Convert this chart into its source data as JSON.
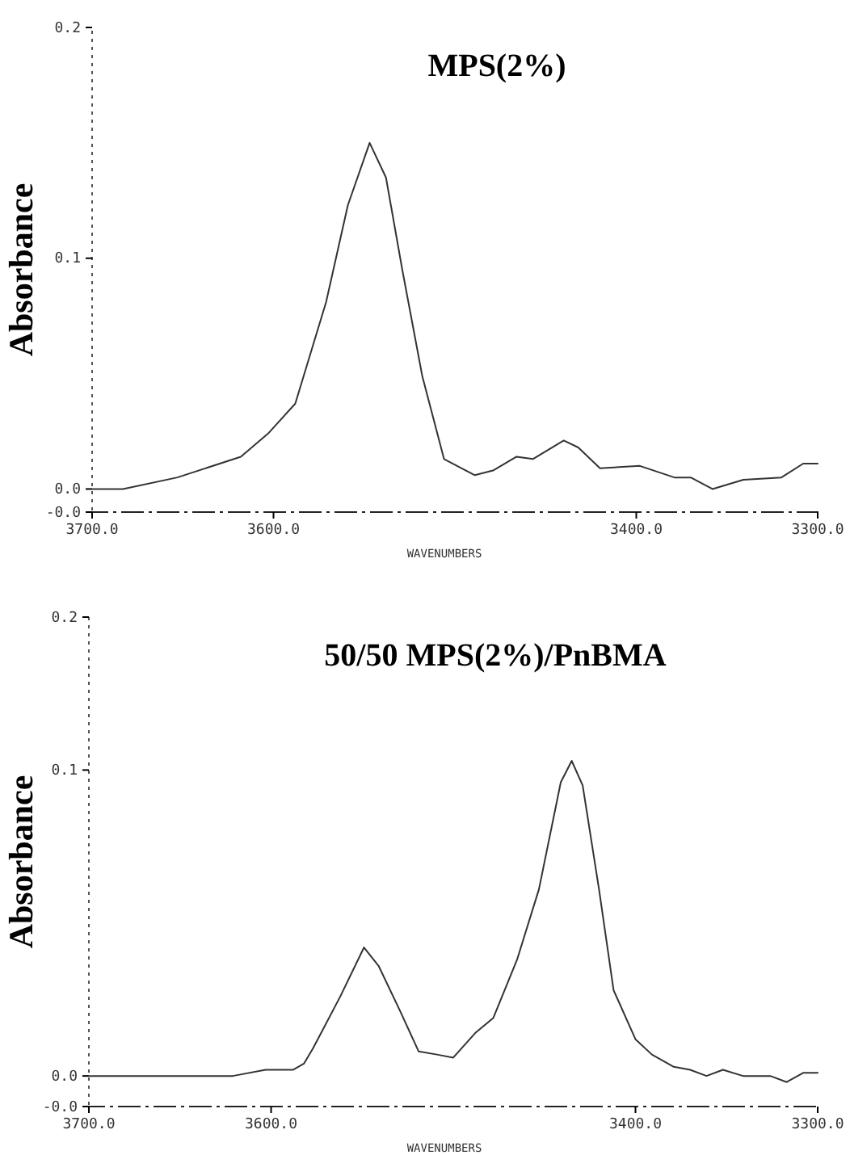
{
  "chart_data": [
    {
      "type": "line",
      "title": "MPS(2%)",
      "xlabel": "WAVENUMBERS",
      "ylabel": "Absorbance",
      "xlim": [
        3700,
        3300
      ],
      "xticks": [
        {
          "value": 3700,
          "label": "3700.0"
        },
        {
          "value": 3600,
          "label": "3600.0"
        },
        {
          "value": 3400,
          "label": "3400.0"
        },
        {
          "value": 3300,
          "label": "3300.0"
        }
      ],
      "ylim": [
        -0.01,
        0.2
      ],
      "yticks": [
        {
          "value": -0.01,
          "label": "-0.0"
        },
        {
          "value": 0,
          "label": "0.0"
        },
        {
          "value": 0.1,
          "label": "0.1"
        },
        {
          "value": 0.2,
          "label": "0.2"
        }
      ],
      "series": [
        {
          "color": "#333333",
          "x": [
            3700,
            3683,
            3653,
            3618,
            3603,
            3588,
            3571,
            3559,
            3547,
            3538,
            3529,
            3518,
            3506,
            3489,
            3479,
            3466,
            3457,
            3440,
            3432,
            3420,
            3398,
            3379,
            3370,
            3358,
            3341,
            3320,
            3308,
            3300
          ],
          "values": [
            0,
            0,
            0.005,
            0.014,
            0.024,
            0.037,
            0.081,
            0.123,
            0.15,
            0.135,
            0.095,
            0.049,
            0.013,
            0.006,
            0.008,
            0.014,
            0.013,
            0.021,
            0.018,
            0.009,
            0.01,
            0.005,
            0.005,
            0,
            0.004,
            0.005,
            0.011,
            0.011
          ]
        }
      ]
    },
    {
      "type": "line",
      "title": "50/50 MPS(2%)/PnBMA",
      "xlabel": "WAVENUMBERS",
      "ylabel": "Absorbance",
      "xlim": [
        3700,
        3300
      ],
      "xticks": [
        {
          "value": 3700,
          "label": "3700.0"
        },
        {
          "value": 3600,
          "label": "3600.0"
        },
        {
          "value": 3400,
          "label": "3400.0"
        },
        {
          "value": 3300,
          "label": "3300.0"
        }
      ],
      "ylim": [
        -0.01,
        0.15
      ],
      "yticks": [
        {
          "value": -0.01,
          "label": "-0.0"
        },
        {
          "value": 0,
          "label": "0.0"
        },
        {
          "value": 0.1,
          "label": "0.1"
        },
        {
          "value": 0.15,
          "label": "0.2"
        }
      ],
      "series": [
        {
          "color": "#333333",
          "x": [
            3700,
            3621,
            3603,
            3588,
            3582,
            3577,
            3562,
            3549,
            3541,
            3529,
            3519,
            3509,
            3500,
            3488,
            3478,
            3465,
            3453,
            3441,
            3435,
            3429,
            3420,
            3412,
            3400,
            3391,
            3379,
            3370,
            3361,
            3352,
            3341,
            3326,
            3317,
            3308,
            3300
          ],
          "values": [
            0,
            0,
            0.002,
            0.002,
            0.004,
            0.009,
            0.026,
            0.042,
            0.036,
            0.021,
            0.008,
            0.007,
            0.006,
            0.014,
            0.019,
            0.038,
            0.061,
            0.096,
            0.103,
            0.095,
            0.061,
            0.028,
            0.012,
            0.007,
            0.003,
            0.002,
            0,
            0.002,
            0,
            0,
            -0.002,
            0.001,
            0.001
          ]
        }
      ]
    }
  ]
}
